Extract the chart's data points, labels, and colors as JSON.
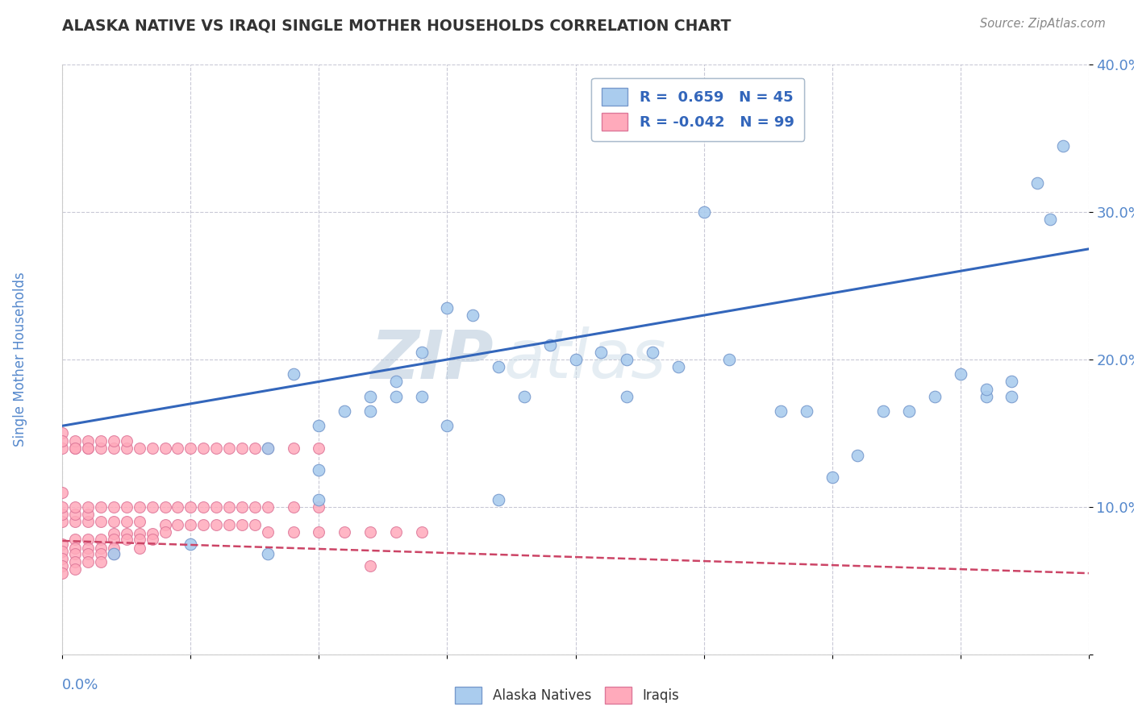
{
  "title": "ALASKA NATIVE VS IRAQI SINGLE MOTHER HOUSEHOLDS CORRELATION CHART",
  "source": "Source: ZipAtlas.com",
  "ylabel": "Single Mother Households",
  "xlim": [
    0.0,
    0.4
  ],
  "ylim": [
    0.0,
    0.4
  ],
  "blue_color": "#AACCEE",
  "pink_color": "#FFAABB",
  "blue_edge": "#7799CC",
  "pink_edge": "#DD7799",
  "blue_line_color": "#3366BB",
  "pink_line_color": "#CC4466",
  "background_color": "#FFFFFF",
  "grid_color": "#BBBBCC",
  "title_color": "#333333",
  "axis_label_color": "#5588CC",
  "tick_color": "#5588CC",
  "watermark_color": "#DDEEFF",
  "alaska_x": [
    0.02,
    0.05,
    0.08,
    0.09,
    0.1,
    0.1,
    0.11,
    0.12,
    0.12,
    0.13,
    0.13,
    0.14,
    0.14,
    0.15,
    0.16,
    0.17,
    0.18,
    0.19,
    0.2,
    0.21,
    0.22,
    0.23,
    0.24,
    0.25,
    0.26,
    0.28,
    0.29,
    0.3,
    0.31,
    0.32,
    0.33,
    0.34,
    0.35,
    0.36,
    0.37,
    0.37,
    0.38,
    0.39,
    0.385,
    0.36,
    0.22,
    0.15,
    0.1,
    0.08,
    0.17
  ],
  "alaska_y": [
    0.068,
    0.075,
    0.14,
    0.19,
    0.155,
    0.125,
    0.165,
    0.175,
    0.165,
    0.185,
    0.175,
    0.205,
    0.175,
    0.235,
    0.23,
    0.195,
    0.175,
    0.21,
    0.2,
    0.205,
    0.175,
    0.205,
    0.195,
    0.3,
    0.2,
    0.165,
    0.165,
    0.12,
    0.135,
    0.165,
    0.165,
    0.175,
    0.19,
    0.175,
    0.175,
    0.185,
    0.32,
    0.345,
    0.295,
    0.18,
    0.2,
    0.155,
    0.105,
    0.068,
    0.105
  ],
  "iraqi_x": [
    0.0,
    0.0,
    0.0,
    0.0,
    0.0,
    0.005,
    0.005,
    0.005,
    0.005,
    0.005,
    0.01,
    0.01,
    0.01,
    0.01,
    0.015,
    0.015,
    0.015,
    0.015,
    0.02,
    0.02,
    0.02,
    0.02,
    0.025,
    0.025,
    0.03,
    0.03,
    0.03,
    0.035,
    0.035,
    0.04,
    0.04,
    0.045,
    0.05,
    0.055,
    0.06,
    0.065,
    0.07,
    0.075,
    0.08,
    0.09,
    0.1,
    0.11,
    0.12,
    0.13,
    0.14,
    0.0,
    0.0,
    0.005,
    0.005,
    0.01,
    0.01,
    0.015,
    0.02,
    0.025,
    0.03,
    0.0,
    0.0,
    0.005,
    0.01,
    0.015,
    0.02,
    0.025,
    0.03,
    0.035,
    0.04,
    0.045,
    0.05,
    0.055,
    0.06,
    0.065,
    0.07,
    0.075,
    0.08,
    0.09,
    0.1,
    0.0,
    0.005,
    0.01,
    0.015,
    0.02,
    0.025,
    0.03,
    0.035,
    0.04,
    0.045,
    0.05,
    0.055,
    0.06,
    0.065,
    0.07,
    0.075,
    0.08,
    0.09,
    0.1,
    0.12,
    0.0,
    0.0,
    0.005,
    0.005,
    0.01,
    0.01,
    0.015,
    0.02,
    0.025
  ],
  "iraqi_y": [
    0.075,
    0.07,
    0.065,
    0.06,
    0.055,
    0.078,
    0.072,
    0.068,
    0.063,
    0.058,
    0.078,
    0.072,
    0.068,
    0.063,
    0.078,
    0.072,
    0.068,
    0.063,
    0.082,
    0.078,
    0.072,
    0.068,
    0.082,
    0.078,
    0.082,
    0.078,
    0.072,
    0.082,
    0.078,
    0.088,
    0.083,
    0.088,
    0.088,
    0.088,
    0.088,
    0.088,
    0.088,
    0.088,
    0.083,
    0.083,
    0.083,
    0.083,
    0.083,
    0.083,
    0.083,
    0.09,
    0.095,
    0.09,
    0.095,
    0.09,
    0.095,
    0.09,
    0.09,
    0.09,
    0.09,
    0.1,
    0.11,
    0.1,
    0.1,
    0.1,
    0.1,
    0.1,
    0.1,
    0.1,
    0.1,
    0.1,
    0.1,
    0.1,
    0.1,
    0.1,
    0.1,
    0.1,
    0.1,
    0.1,
    0.1,
    0.14,
    0.14,
    0.14,
    0.14,
    0.14,
    0.14,
    0.14,
    0.14,
    0.14,
    0.14,
    0.14,
    0.14,
    0.14,
    0.14,
    0.14,
    0.14,
    0.14,
    0.14,
    0.14,
    0.06,
    0.15,
    0.145,
    0.145,
    0.14,
    0.145,
    0.14,
    0.145,
    0.145,
    0.145
  ],
  "blue_line_x0": 0.0,
  "blue_line_y0": 0.155,
  "blue_line_x1": 0.4,
  "blue_line_y1": 0.275,
  "pink_line_x0": 0.0,
  "pink_line_y0": 0.077,
  "pink_line_x1": 0.4,
  "pink_line_y1": 0.055
}
